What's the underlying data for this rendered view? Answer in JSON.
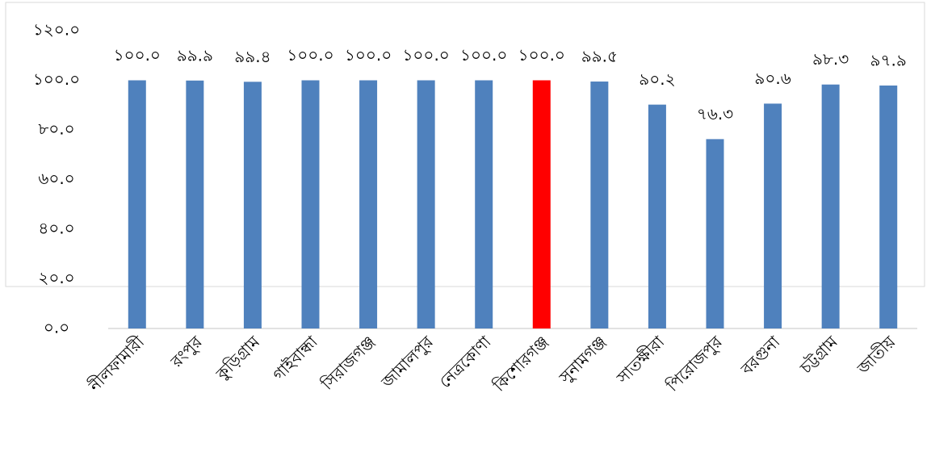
{
  "chart_data": {
    "type": "bar",
    "categories": [
      "নীলফামারী",
      "রংপুর",
      "কুড়িগ্রাম",
      "গাইবান্ধা",
      "সিরাজগঞ্জ",
      "জামালপুর",
      "নেত্রকোণা",
      "কিশোরগঞ্জ",
      "সুনামগঞ্জ",
      "সাতক্ষীরা",
      "পিরোজপুর",
      "বরগুনা",
      "চট্টগ্রাম",
      "জাতীয়"
    ],
    "values": [
      100.0,
      99.9,
      99.4,
      100.0,
      100.0,
      100.0,
      100.0,
      100.0,
      99.5,
      90.2,
      76.3,
      90.6,
      98.3,
      97.9
    ],
    "value_labels": [
      "১০০.০",
      "৯৯.৯",
      "৯৯.৪",
      "১০০.০",
      "১০০.০",
      "১০০.০",
      "১০০.০",
      "১০০.০",
      "৯৯.৫",
      "৯০.২",
      "৭৬.৩",
      "৯০.৬",
      "৯৮.৩",
      "৯৭.৯"
    ],
    "colors": [
      "#4f81bd",
      "#4f81bd",
      "#4f81bd",
      "#4f81bd",
      "#4f81bd",
      "#4f81bd",
      "#4f81bd",
      "#ff0000",
      "#4f81bd",
      "#4f81bd",
      "#4f81bd",
      "#4f81bd",
      "#4f81bd",
      "#4f81bd"
    ],
    "ylim": [
      0,
      120
    ],
    "yticks": [
      {
        "value": 0,
        "label": "০.০"
      },
      {
        "value": 20,
        "label": "২০.০"
      },
      {
        "value": 40,
        "label": "৪০.০"
      },
      {
        "value": 60,
        "label": "৬০.০"
      },
      {
        "value": 80,
        "label": "৮০.০"
      },
      {
        "value": 100,
        "label": "১০০.০"
      },
      {
        "value": 120,
        "label": "১২০.০"
      }
    ],
    "grid": false
  }
}
